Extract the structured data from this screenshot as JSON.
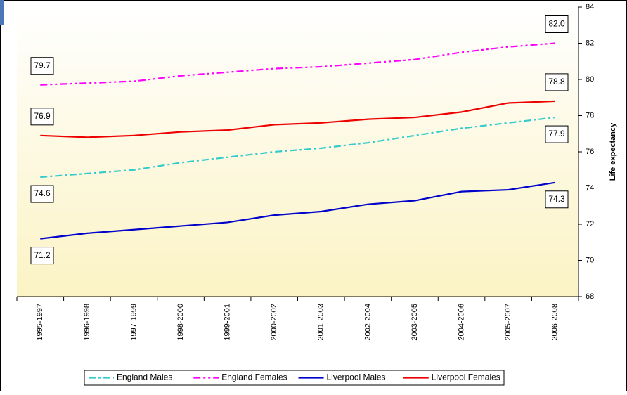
{
  "chart_data": {
    "type": "line",
    "y_axis_label": "Life expectancy",
    "categories": [
      "1995-1997",
      "1996-1998",
      "1997-1999",
      "1998-2000",
      "1999-2001",
      "2000-2002",
      "2001-2003",
      "2002-2004",
      "2003-2005",
      "2004-2006",
      "2005-2007",
      "2006-2008"
    ],
    "series": [
      {
        "name": "England Males",
        "color": "#33cccc",
        "dash": "dash-dot",
        "values": [
          74.6,
          74.8,
          75.0,
          75.4,
          75.7,
          76.0,
          76.2,
          76.5,
          76.9,
          77.3,
          77.6,
          77.9
        ],
        "value_labels": [
          "74.6",
          null,
          null,
          null,
          null,
          null,
          null,
          null,
          null,
          null,
          null,
          "77.9"
        ]
      },
      {
        "name": "England Females",
        "color": "#ff00ff",
        "dash": "dash-dot-dot",
        "values": [
          79.7,
          79.8,
          79.9,
          80.2,
          80.4,
          80.6,
          80.7,
          80.9,
          81.1,
          81.5,
          81.8,
          82.0
        ],
        "value_labels": [
          "79.7",
          null,
          null,
          null,
          null,
          null,
          null,
          null,
          null,
          null,
          null,
          "82.0"
        ]
      },
      {
        "name": "Liverpool Males",
        "color": "#0000cc",
        "dash": "solid",
        "values": [
          71.2,
          71.5,
          71.7,
          71.9,
          72.1,
          72.5,
          72.7,
          73.1,
          73.3,
          73.8,
          73.9,
          74.3
        ],
        "value_labels": [
          "71.2",
          null,
          null,
          null,
          null,
          null,
          null,
          null,
          null,
          null,
          null,
          "74.3"
        ]
      },
      {
        "name": "Liverpool Females",
        "color": "#ee0000",
        "dash": "solid",
        "values": [
          76.9,
          76.8,
          76.9,
          77.1,
          77.2,
          77.5,
          77.6,
          77.8,
          77.9,
          78.2,
          78.7,
          78.8
        ],
        "value_labels": [
          "76.9",
          null,
          null,
          null,
          null,
          null,
          null,
          null,
          null,
          null,
          null,
          "78.8"
        ]
      }
    ],
    "ylim": [
      68,
      84
    ],
    "yticks": [
      68,
      70,
      72,
      74,
      76,
      78,
      80,
      82,
      84
    ],
    "y_axis_side": "right",
    "legend": "bottom"
  }
}
